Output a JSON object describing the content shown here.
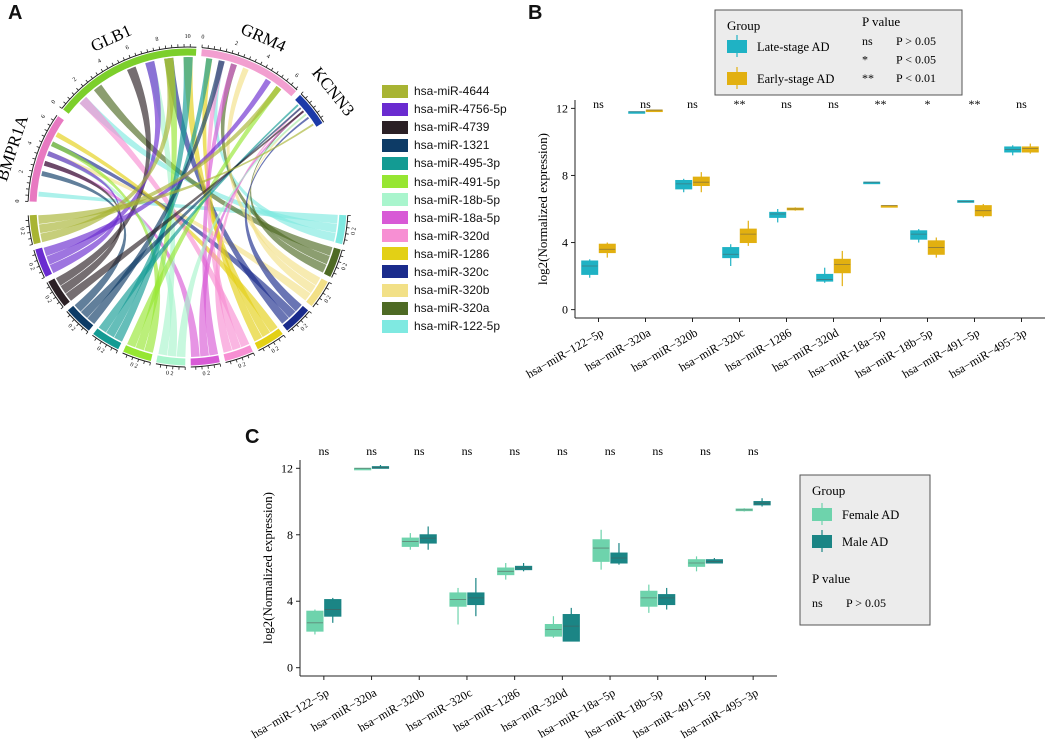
{
  "panels": {
    "a": "A",
    "b": "B",
    "c": "C"
  },
  "chord": {
    "genes": [
      "BMPR1A",
      "GLB1",
      "GRM4",
      "KCNN3"
    ],
    "gene_colors": [
      "#e879c1",
      "#7ccf2b",
      "#f29fd0",
      "#1c3aa8"
    ],
    "glb1_ticks": [
      "0",
      "2",
      "4",
      "6",
      "8",
      "10"
    ],
    "grm4_ticks": [
      "0",
      "2",
      "4",
      "6"
    ],
    "bmpr1a_ticks": [
      "0",
      "2",
      "4",
      "6"
    ],
    "mirna_ticks": "0 2",
    "legend": [
      {
        "label": "hsa-miR-4644",
        "color": "#a8b433"
      },
      {
        "label": "hsa-miR-4756-5p",
        "color": "#6a2bd0"
      },
      {
        "label": "hsa-miR-4739",
        "color": "#2b2025"
      },
      {
        "label": "hsa-miR-1321",
        "color": "#0d3b66"
      },
      {
        "label": "hsa-miR-495-3p",
        "color": "#139b93"
      },
      {
        "label": "hsa-miR-491-5p",
        "color": "#96e632"
      },
      {
        "label": "hsa-miR-18b-5p",
        "color": "#a9f5cd"
      },
      {
        "label": "hsa-miR-18a-5p",
        "color": "#d85ad6"
      },
      {
        "label": "hsa-miR-320d",
        "color": "#f78fd3"
      },
      {
        "label": "hsa-miR-1286",
        "color": "#e3d015"
      },
      {
        "label": "hsa-miR-320c",
        "color": "#1a2b8c"
      },
      {
        "label": "hsa-miR-320b",
        "color": "#f2e087"
      },
      {
        "label": "hsa-miR-320a",
        "color": "#4e6a24"
      },
      {
        "label": "hsa-miR-122-5p",
        "color": "#7fe9e1"
      }
    ]
  },
  "chart_data": [
    {
      "type": "box",
      "panel": "B",
      "ylabel": "log2(Normalized expression)",
      "ylim": [
        -0.5,
        12.5
      ],
      "yticks": [
        0,
        4,
        8,
        12
      ],
      "categories": [
        "hsa−miR−122−5p",
        "hsa−miR−320a",
        "hsa−miR−320b",
        "hsa−miR−320c",
        "hsa−miR−1286",
        "hsa−miR−320d",
        "hsa−miR−18a−5p",
        "hsa−miR−18b−5p",
        "hsa−miR−491−5p",
        "hsa−miR−495−3p"
      ],
      "significance": [
        "ns",
        "ns",
        "ns",
        "**",
        "ns",
        "ns",
        "**",
        "*",
        "**",
        "ns"
      ],
      "series": [
        {
          "name": "Late-stage AD",
          "color": "#1fb2c4",
          "boxes": [
            [
              1.9,
              2.1,
              2.6,
              2.9,
              3.0
            ],
            [
              11.8,
              11.8,
              11.8,
              11.8,
              11.8
            ],
            [
              7.0,
              7.2,
              7.5,
              7.7,
              7.8
            ],
            [
              2.6,
              3.1,
              3.3,
              3.7,
              3.9
            ],
            [
              5.2,
              5.5,
              5.7,
              5.8,
              6.0
            ],
            [
              1.6,
              1.7,
              1.8,
              2.1,
              2.5
            ],
            [
              7.6,
              7.6,
              7.6,
              7.6,
              7.6
            ],
            [
              4.0,
              4.2,
              4.5,
              4.7,
              4.8
            ],
            [
              6.4,
              6.4,
              6.45,
              6.5,
              6.5
            ],
            [
              9.2,
              9.4,
              9.55,
              9.7,
              9.8
            ]
          ]
        },
        {
          "name": "Early-stage AD",
          "color": "#e2b010",
          "boxes": [
            [
              3.1,
              3.4,
              3.6,
              3.9,
              4.0
            ],
            [
              11.9,
              11.9,
              11.9,
              11.9,
              11.9
            ],
            [
              7.0,
              7.4,
              7.6,
              7.9,
              8.2
            ],
            [
              3.8,
              4.0,
              4.5,
              4.8,
              5.3
            ],
            [
              5.9,
              5.95,
              6.0,
              6.05,
              6.1
            ],
            [
              1.4,
              2.2,
              2.7,
              3.0,
              3.5
            ],
            [
              6.2,
              6.2,
              6.2,
              6.2,
              6.2
            ],
            [
              3.1,
              3.3,
              3.7,
              4.1,
              4.3
            ],
            [
              5.5,
              5.6,
              5.9,
              6.2,
              6.3
            ],
            [
              9.3,
              9.4,
              9.6,
              9.7,
              9.9
            ]
          ]
        }
      ],
      "legend": {
        "title": "Group",
        "items": [
          "Late-stage AD",
          "Early-stage AD"
        ],
        "pvalue_title": "P value",
        "pvalue_rows": [
          [
            "ns",
            "P > 0.05"
          ],
          [
            "*",
            "P < 0.05"
          ],
          [
            "**",
            "P < 0.01"
          ]
        ]
      }
    },
    {
      "type": "box",
      "panel": "C",
      "ylabel": "log2(Normalized expression)",
      "ylim": [
        -0.5,
        12.5
      ],
      "yticks": [
        0,
        4,
        8,
        12
      ],
      "categories": [
        "hsa−miR−122−5p",
        "hsa−miR−320a",
        "hsa−miR−320b",
        "hsa−miR−320c",
        "hsa−miR−1286",
        "hsa−miR−320d",
        "hsa−miR−18a−5p",
        "hsa−miR−18b−5p",
        "hsa−miR−491−5p",
        "hsa−miR−495−3p"
      ],
      "significance": [
        "ns",
        "ns",
        "ns",
        "ns",
        "ns",
        "ns",
        "ns",
        "ns",
        "ns",
        "ns"
      ],
      "series": [
        {
          "name": "Female AD",
          "color": "#6ed3ac",
          "boxes": [
            [
              2.0,
              2.2,
              2.7,
              3.4,
              3.5
            ],
            [
              12.0,
              12.0,
              12.0,
              12.0,
              12.0
            ],
            [
              7.1,
              7.3,
              7.6,
              7.8,
              8.1
            ],
            [
              2.6,
              3.7,
              4.1,
              4.5,
              4.8
            ],
            [
              5.3,
              5.6,
              5.8,
              6.0,
              6.3
            ],
            [
              1.8,
              1.9,
              2.3,
              2.6,
              3.1
            ],
            [
              5.9,
              6.4,
              7.2,
              7.7,
              8.3
            ],
            [
              3.3,
              3.7,
              4.2,
              4.6,
              5.0
            ],
            [
              5.8,
              6.1,
              6.3,
              6.5,
              6.7
            ],
            [
              9.4,
              9.45,
              9.5,
              9.55,
              9.6
            ]
          ]
        },
        {
          "name": "Male AD",
          "color": "#1b8585",
          "boxes": [
            [
              2.7,
              3.1,
              3.5,
              4.1,
              4.2
            ],
            [
              12.0,
              12.0,
              12.05,
              12.1,
              12.2
            ],
            [
              7.1,
              7.5,
              7.8,
              8.0,
              8.5
            ],
            [
              3.1,
              3.8,
              4.2,
              4.5,
              5.4
            ],
            [
              5.8,
              5.9,
              6.0,
              6.1,
              6.3
            ],
            [
              1.6,
              1.6,
              2.5,
              3.2,
              3.6
            ],
            [
              6.2,
              6.3,
              6.6,
              6.9,
              7.5
            ],
            [
              3.5,
              3.8,
              4.2,
              4.4,
              4.8
            ],
            [
              6.3,
              6.3,
              6.4,
              6.5,
              6.6
            ],
            [
              9.7,
              9.8,
              9.9,
              10.0,
              10.2
            ]
          ]
        }
      ],
      "legend": {
        "title": "Group",
        "items": [
          "Female AD",
          "Male AD"
        ],
        "pvalue_title": "P value",
        "pvalue_rows": [
          [
            "ns",
            "P > 0.05"
          ]
        ]
      }
    }
  ]
}
